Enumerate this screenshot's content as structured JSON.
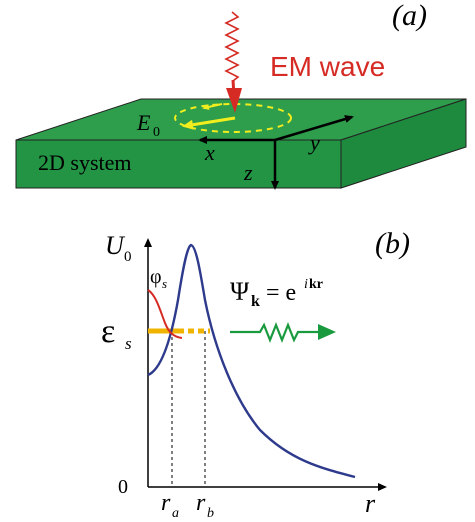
{
  "panel_a": {
    "label": "(a)",
    "em_wave_label": "EM wave",
    "field_label": "E",
    "field_subscript": "0",
    "system_label": "2D system",
    "axis_x": "x",
    "axis_y": "y",
    "axis_z": "z",
    "colors": {
      "slab_top": "#2e9d4c",
      "slab_front": "#229444",
      "slab_side": "#1d8a3d",
      "wave": "#d62b24",
      "field": "#f2ee1e",
      "axes": "#000000"
    }
  },
  "panel_b": {
    "label": "(b)",
    "y_label_top": "U",
    "y_label_top_sub": "0",
    "y_label_energy": "ε",
    "y_label_energy_sub": "s",
    "y_label_zero": "0",
    "x_label": "r",
    "tick_a": "r",
    "tick_a_sub": "a",
    "tick_b": "r",
    "tick_b_sub": "b",
    "bound_state_label": "φ",
    "bound_state_sub": "s",
    "plane_wave_psi": "Ψ",
    "plane_wave_k": "k",
    "plane_wave_eq": "= e",
    "plane_wave_exp_i": "i",
    "plane_wave_exp_kr": "kr",
    "colors": {
      "potential": "#2e3a8c",
      "bound_state": "#d62b24",
      "energy_level": "#f0b400",
      "plane_wave": "#1a9a3e"
    }
  }
}
